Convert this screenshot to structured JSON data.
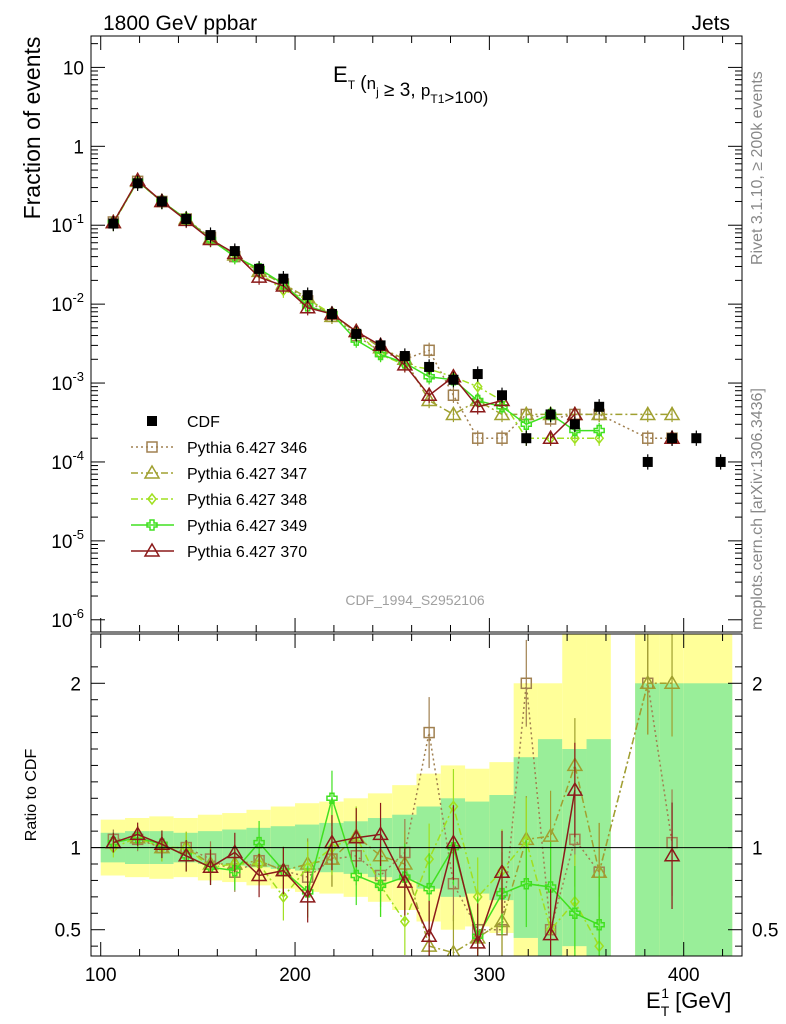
{
  "header": {
    "left": "1800 GeV ppbar",
    "right": "Jets"
  },
  "side_labels": {
    "rivet": "Rivet 3.1.10, ≥ 200k events",
    "mcplots": "mcplots.cern.ch [arXiv:1306.3436]"
  },
  "watermark": "CDF_1994_S2952106",
  "chart_data": [
    {
      "type": "line",
      "panel": "main",
      "title": "E_T (n_j ≥ 3, p_T1>100)",
      "ylabel": "Fraction of events",
      "xlabel": "",
      "yscale": "log",
      "xlim": [
        95,
        430
      ],
      "ylim": [
        7e-07,
        25
      ],
      "yticks": [
        1e-06,
        1e-05,
        0.0001,
        0.001,
        0.01,
        0.1,
        1,
        10
      ],
      "ytick_labels": [
        "10^-6",
        "10^-5",
        "10^-4",
        "10^-3",
        "10^-2",
        "10^-1",
        "1",
        "10"
      ],
      "legend_position": "left-middle",
      "x": [
        106.5,
        119,
        131.5,
        144,
        156.5,
        169,
        181.5,
        194,
        206.5,
        219,
        231.5,
        244,
        256.5,
        269,
        281.5,
        294,
        306.5,
        319,
        331.5,
        344,
        356.5,
        381.5,
        394,
        406.5,
        419
      ],
      "series": [
        {
          "name": "CDF",
          "color": "#000000",
          "marker": "square-filled",
          "line": "none",
          "values": [
            0.105,
            0.34,
            0.2,
            0.12,
            0.075,
            0.047,
            0.028,
            0.021,
            0.013,
            0.0075,
            0.0042,
            0.003,
            0.0022,
            0.0016,
            0.0011,
            0.0013,
            0.0007,
            0.0002,
            0.0004,
            0.0003,
            0.0005,
            0.0001,
            0.0002,
            0.0002,
            0.0001
          ]
        },
        {
          "name": "Pythia 6.427 346",
          "color": "#a08050",
          "marker": "square-open",
          "line": "dotted",
          "values": [
            0.11,
            0.36,
            0.2,
            0.12,
            0.07,
            0.04,
            0.026,
            0.018,
            0.011,
            0.007,
            0.004,
            0.0025,
            0.002,
            0.0026,
            0.0007,
            0.0002,
            0.0002,
            0.0004,
            0.00035,
            0.0004,
            0.0004,
            0.0002,
            0.0002,
            null,
            null
          ]
        },
        {
          "name": "Pythia 6.427 347",
          "color": "#a0a030",
          "marker": "triangle-open",
          "line": "dashdot",
          "values": [
            0.108,
            0.36,
            0.2,
            0.12,
            0.068,
            0.042,
            0.026,
            0.018,
            0.012,
            0.007,
            0.0045,
            0.0028,
            0.002,
            0.0006,
            0.0004,
            0.0006,
            0.0004,
            0.0004,
            0.0004,
            0.0004,
            0.0004,
            0.0004,
            0.0004,
            null,
            null
          ]
        },
        {
          "name": "Pythia 6.427 348",
          "color": "#a0e020",
          "marker": "diamond-open",
          "line": "dashdot",
          "values": [
            0.105,
            0.36,
            0.2,
            0.12,
            0.066,
            0.043,
            0.025,
            0.015,
            0.0115,
            0.0075,
            0.0045,
            0.0023,
            0.0017,
            0.0015,
            0.0012,
            0.0009,
            0.0006,
            0.0002,
            0.0002,
            0.0002,
            0.0002,
            null,
            null,
            null,
            null
          ]
        },
        {
          "name": "Pythia 6.427 349",
          "color": "#40e020",
          "marker": "cross-open",
          "line": "solid",
          "values": [
            0.108,
            0.36,
            0.2,
            0.12,
            0.066,
            0.04,
            0.028,
            0.018,
            0.0095,
            0.0075,
            0.0035,
            0.0023,
            0.0018,
            0.0012,
            0.0011,
            0.0006,
            0.0005,
            0.0003,
            0.0004,
            0.00025,
            0.00025,
            null,
            null,
            null,
            null
          ]
        },
        {
          "name": "Pythia 6.427 370",
          "color": "#8b1a1a",
          "marker": "triangle-open",
          "line": "solid",
          "values": [
            0.108,
            0.37,
            0.2,
            0.115,
            0.066,
            0.044,
            0.022,
            0.017,
            0.009,
            0.0075,
            0.0045,
            0.003,
            0.0017,
            0.0007,
            0.0012,
            0.0005,
            0.0006,
            null,
            0.0002,
            0.0004,
            null,
            null,
            0.0002,
            null,
            null
          ]
        }
      ]
    },
    {
      "type": "line",
      "panel": "ratio",
      "ylabel": "Ratio to CDF",
      "xlabel": "E_T^1 [GeV]",
      "xlim": [
        95,
        430
      ],
      "ylim": [
        0.34,
        2.3
      ],
      "yscale": "linear",
      "xticks": [
        100,
        200,
        300,
        400
      ],
      "yticks": [
        0.5,
        1,
        2
      ],
      "ytick_labels": [
        "0.5",
        "1",
        "2"
      ],
      "x": [
        106.5,
        119,
        131.5,
        144,
        156.5,
        169,
        181.5,
        194,
        206.5,
        219,
        231.5,
        244,
        256.5,
        269,
        281.5,
        294,
        306.5,
        319,
        331.5,
        344,
        356.5,
        381.5,
        394
      ],
      "bands": {
        "edges": [
          100,
          112.5,
          125,
          137.5,
          150,
          162.5,
          175,
          187.5,
          200,
          212.5,
          225,
          237.5,
          250,
          262.5,
          275,
          287.5,
          300,
          312.5,
          325,
          337.5,
          350,
          362.5,
          375,
          387.5,
          400,
          412.5,
          425
        ],
        "inner_lo": [
          0.91,
          0.9,
          0.9,
          0.91,
          0.9,
          0.89,
          0.88,
          0.87,
          0.86,
          0.85,
          0.84,
          0.82,
          0.8,
          0.75,
          0.7,
          0.72,
          0.68,
          0.45,
          0.34,
          0.4,
          0.34,
          null,
          0.34,
          0.34,
          0.34,
          0.34
        ],
        "inner_hi": [
          1.09,
          1.1,
          1.1,
          1.09,
          1.1,
          1.11,
          1.12,
          1.13,
          1.14,
          1.15,
          1.16,
          1.18,
          1.2,
          1.25,
          1.3,
          1.28,
          1.32,
          1.55,
          1.66,
          1.6,
          1.66,
          null,
          2.0,
          2.0,
          2.0,
          2.0
        ],
        "outer_lo": [
          0.83,
          0.82,
          0.81,
          0.82,
          0.8,
          0.79,
          0.77,
          0.75,
          0.73,
          0.72,
          0.7,
          0.67,
          0.62,
          0.55,
          0.5,
          0.52,
          0.48,
          0.34,
          0.34,
          0.34,
          0.34,
          null,
          0.34,
          0.34,
          0.34,
          0.34
        ],
        "outer_hi": [
          1.17,
          1.18,
          1.19,
          1.18,
          1.2,
          1.21,
          1.23,
          1.25,
          1.27,
          1.28,
          1.3,
          1.33,
          1.38,
          1.45,
          1.5,
          1.48,
          1.52,
          2.0,
          2.0,
          2.3,
          2.3,
          null,
          2.3,
          2.3,
          2.3,
          2.3
        ]
      },
      "series": [
        {
          "name": "Pythia 6.427 346",
          "color": "#a08050",
          "values": [
            1.05,
            1.05,
            1.0,
            1.0,
            0.93,
            0.85,
            0.92,
            0.86,
            0.82,
            0.93,
            0.95,
            0.83,
            0.97,
            1.7,
            0.78,
            0.5,
            0.5,
            2.0,
            0.5,
            1.05,
            0.85,
            2.0,
            1.03
          ]
        },
        {
          "name": "Pythia 6.427 347",
          "color": "#a0a030",
          "values": [
            1.03,
            1.06,
            1.0,
            1.0,
            0.9,
            0.9,
            0.92,
            0.86,
            0.9,
            0.93,
            1.07,
            0.95,
            0.9,
            0.4,
            0.36,
            0.45,
            0.55,
            1.05,
            1.07,
            1.5,
            0.85,
            2.0,
            2.0
          ]
        },
        {
          "name": "Pythia 6.427 348",
          "color": "#a0e020",
          "values": [
            1.0,
            1.06,
            1.0,
            1.0,
            0.88,
            0.9,
            0.9,
            0.7,
            0.88,
            1.0,
            1.07,
            0.77,
            0.55,
            0.93,
            1.25,
            0.7,
            0.86,
            1.04,
            0.5,
            0.67,
            0.4,
            null,
            null
          ]
        },
        {
          "name": "Pythia 6.427 349",
          "color": "#40e020",
          "values": [
            1.03,
            1.06,
            1.02,
            0.95,
            0.88,
            0.86,
            1.03,
            0.86,
            0.73,
            1.3,
            0.83,
            0.77,
            0.82,
            0.75,
            1.0,
            0.46,
            0.72,
            0.78,
            0.76,
            0.6,
            0.53,
            null,
            null
          ]
        },
        {
          "name": "Pythia 6.427 370",
          "color": "#8b1a1a",
          "values": [
            1.03,
            1.08,
            1.02,
            0.95,
            0.88,
            0.97,
            0.83,
            0.86,
            0.7,
            1.03,
            1.06,
            1.08,
            0.79,
            0.46,
            1.03,
            0.42,
            0.85,
            null,
            0.47,
            1.35,
            null,
            null,
            0.95
          ]
        }
      ]
    }
  ]
}
